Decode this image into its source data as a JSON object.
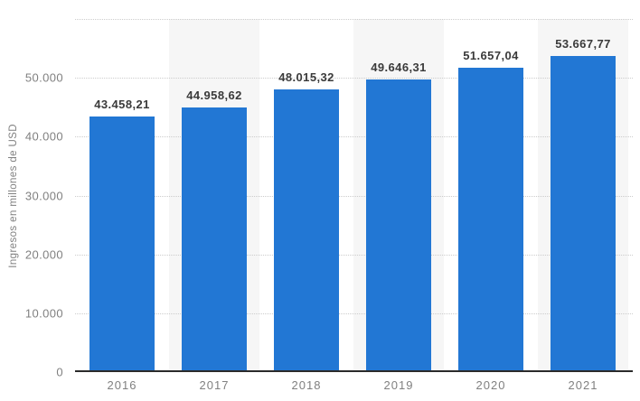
{
  "chart_data": {
    "type": "bar",
    "title": "",
    "xlabel": "",
    "ylabel": "Ingresos en millones de USD",
    "categories": [
      "2016",
      "2017",
      "2018",
      "2019",
      "2020",
      "2021"
    ],
    "values": [
      43458.21,
      44958.62,
      48015.32,
      49646.31,
      51657.04,
      53667.77
    ],
    "value_labels": [
      "43.458,21",
      "44.958,62",
      "48.015,32",
      "49.646,31",
      "51.657,04",
      "53.667,77"
    ],
    "y_ticks": [
      {
        "value": 0,
        "label": "0"
      },
      {
        "value": 10000,
        "label": "10.000"
      },
      {
        "value": 20000,
        "label": "20.000"
      },
      {
        "value": 30000,
        "label": "30.000"
      },
      {
        "value": 40000,
        "label": "40.000"
      },
      {
        "value": 50000,
        "label": "50.000"
      }
    ],
    "ylim": [
      0,
      60000
    ],
    "grid": "horizontal-dotted",
    "gridline_step": 10000,
    "legend": "none",
    "striped_columns": [
      1,
      3,
      5
    ]
  },
  "colors": {
    "bar": "#2277d4",
    "stripe": "#f6f6f6",
    "grid": "#cccccc",
    "axis": "#2b2b2b",
    "tick_label": "#808080",
    "value_label": "#3a3a3a",
    "background": "#ffffff"
  }
}
